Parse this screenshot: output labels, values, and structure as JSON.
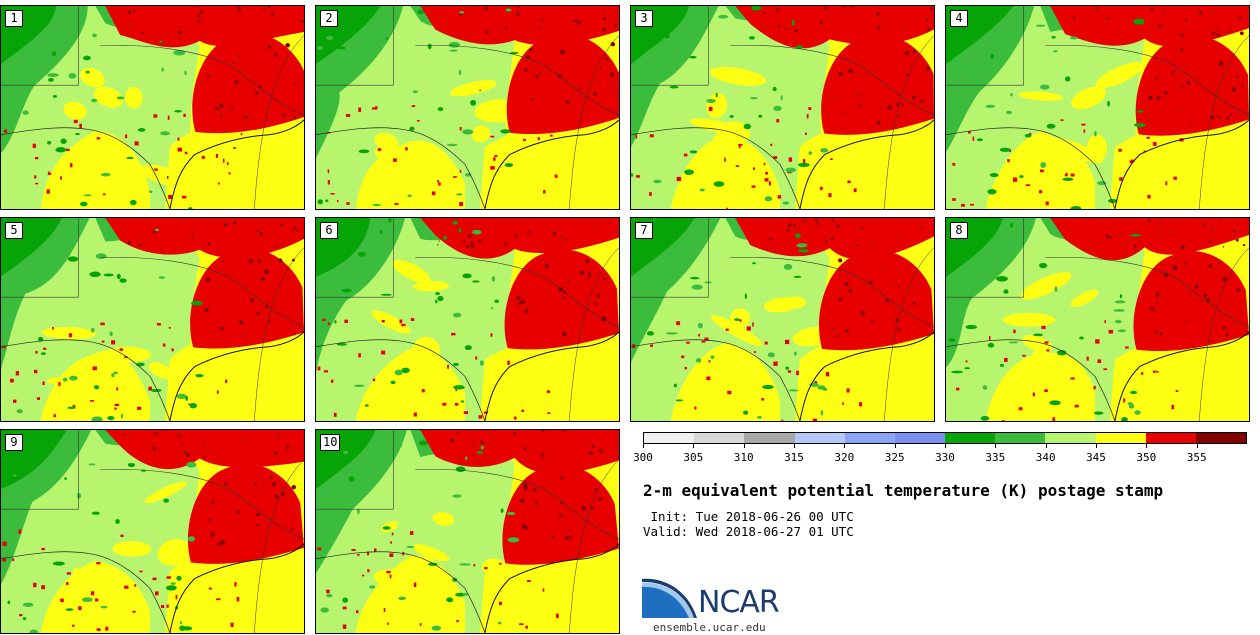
{
  "members": [
    {
      "label": "1"
    },
    {
      "label": "2"
    },
    {
      "label": "3"
    },
    {
      "label": "4"
    },
    {
      "label": "5"
    },
    {
      "label": "6"
    },
    {
      "label": "7"
    },
    {
      "label": "8"
    },
    {
      "label": "9"
    },
    {
      "label": "10"
    }
  ],
  "colorbar": {
    "colors": [
      "#f0f0f0",
      "#d8d8d8",
      "#a8a8a8",
      "#b4c8fa",
      "#8aa4f8",
      "#7c90f0",
      "#06a406",
      "#3cbc3c",
      "#b8f56e",
      "#ffff14",
      "#e60000",
      "#820000"
    ],
    "tick_labels": [
      "300",
      "305",
      "310",
      "315",
      "320",
      "325",
      "330",
      "335",
      "340",
      "345",
      "350",
      "355"
    ],
    "units": "K"
  },
  "title": "2-m equivalent potential temperature (K) postage stamp",
  "init_line": " Init: Tue 2018-06-26 00 UTC",
  "valid_line": "Valid: Wed 2018-06-27 01 UTC",
  "logo": {
    "text": "NCAR",
    "url": "ensemble.ucar.edu"
  },
  "colors": {
    "dark_green": "#06a406",
    "green": "#3cbc3c",
    "light_green": "#b8f56e",
    "yellow": "#ffff14",
    "red": "#e60000",
    "dark_red": "#820000",
    "blue": "#7c90f0"
  }
}
